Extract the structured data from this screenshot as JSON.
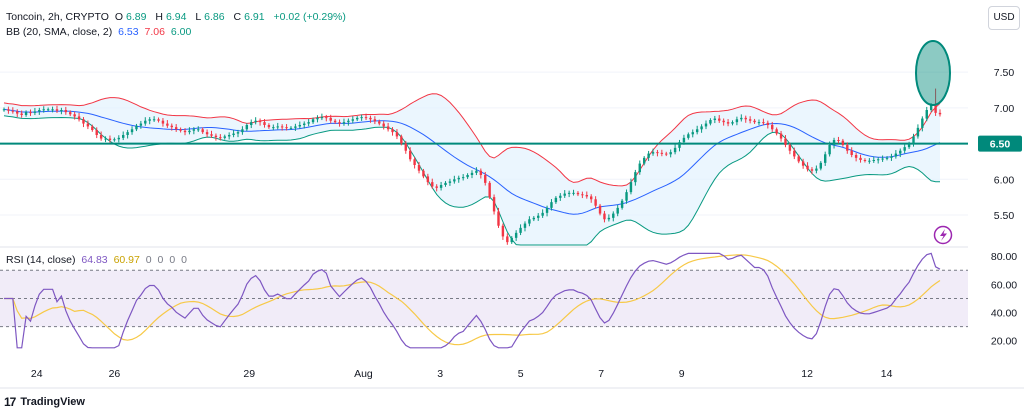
{
  "header": {
    "symbol": "Toncoin, 2h, CRYPTO",
    "o_label": "O",
    "o_val": "6.89",
    "h_label": "H",
    "h_val": "6.94",
    "l_label": "L",
    "l_val": "6.86",
    "c_label": "C",
    "c_val": "6.91",
    "change": "+0.02 (+0.29%)"
  },
  "bb_legend": {
    "label": "BB (20, SMA, close, 2)",
    "basis": "6.53",
    "upper": "7.06",
    "lower": "6.00"
  },
  "rsi_legend": {
    "label": "RSI (14, close)",
    "rsi": "64.83",
    "sma": "60.97",
    "extra": [
      "0",
      "0",
      "0",
      "0"
    ]
  },
  "currency_button": "USD",
  "brand": {
    "logo": "17",
    "name": "TradingView"
  },
  "colors": {
    "candle_up": "#089981",
    "candle_down": "#f23645",
    "bb_basis": "#2962ff",
    "bb_upper": "#f23645",
    "bb_lower": "#089981",
    "bb_fill": "#e3f2fd",
    "support": "#00897b",
    "rsi_line": "#7e57c2",
    "rsi_ma": "#f7c948",
    "rsi_band": "#ede7f6"
  },
  "chart_data": [
    {
      "type": "candlestick",
      "title": "Toncoin, 2h, CRYPTO",
      "x_labels": [
        "24",
        "26",
        "29",
        "Aug",
        "3",
        "5",
        "7",
        "9",
        "12",
        "14"
      ],
      "y_ticks": [
        5.5,
        6.0,
        6.5,
        7.0,
        7.5
      ],
      "ylim": [
        5.08,
        7.95
      ],
      "support_level": 6.5,
      "support_label": "6.50",
      "bb_last": {
        "basis": 6.53,
        "upper": 7.06,
        "lower": 6.0
      },
      "close": [
        6.98,
        6.96,
        6.95,
        6.92,
        6.9,
        6.94,
        6.93,
        6.95,
        6.97,
        6.98,
        6.98,
        6.98,
        6.96,
        6.97,
        6.94,
        6.91,
        6.88,
        6.84,
        6.78,
        6.74,
        6.69,
        6.62,
        6.57,
        6.57,
        6.55,
        6.56,
        6.58,
        6.62,
        6.66,
        6.7,
        6.75,
        6.78,
        6.82,
        6.84,
        6.84,
        6.82,
        6.78,
        6.75,
        6.73,
        6.7,
        6.68,
        6.66,
        6.68,
        6.7,
        6.7,
        6.66,
        6.63,
        6.61,
        6.59,
        6.58,
        6.6,
        6.62,
        6.64,
        6.66,
        6.7,
        6.76,
        6.8,
        6.82,
        6.8,
        6.76,
        6.73,
        6.73,
        6.74,
        6.73,
        6.72,
        6.72,
        6.74,
        6.76,
        6.78,
        6.8,
        6.84,
        6.86,
        6.87,
        6.86,
        6.82,
        6.8,
        6.78,
        6.8,
        6.82,
        6.84,
        6.86,
        6.87,
        6.86,
        6.84,
        6.81,
        6.78,
        6.74,
        6.7,
        6.66,
        6.6,
        6.5,
        6.4,
        6.28,
        6.2,
        6.12,
        6.04,
        5.96,
        5.9,
        5.88,
        5.92,
        5.95,
        5.97,
        6.0,
        6.02,
        6.03,
        6.06,
        6.09,
        6.12,
        6.06,
        5.95,
        5.75,
        5.55,
        5.35,
        5.2,
        5.12,
        5.18,
        5.25,
        5.32,
        5.38,
        5.44,
        5.46,
        5.49,
        5.53,
        5.6,
        5.68,
        5.74,
        5.77,
        5.8,
        5.81,
        5.81,
        5.79,
        5.78,
        5.76,
        5.72,
        5.63,
        5.52,
        5.44,
        5.46,
        5.52,
        5.6,
        5.7,
        5.82,
        5.96,
        6.1,
        6.22,
        6.3,
        6.36,
        6.38,
        6.37,
        6.36,
        6.35,
        6.38,
        6.44,
        6.52,
        6.58,
        6.63,
        6.66,
        6.7,
        6.74,
        6.78,
        6.83,
        6.85,
        6.82,
        6.8,
        6.78,
        6.8,
        6.84,
        6.86,
        6.84,
        6.82,
        6.8,
        6.8,
        6.79,
        6.76,
        6.7,
        6.64,
        6.57,
        6.48,
        6.4,
        6.32,
        6.25,
        6.19,
        6.14,
        6.12,
        6.15,
        6.23,
        6.35,
        6.48,
        6.55,
        6.54,
        6.48,
        6.4,
        6.34,
        6.3,
        6.27,
        6.26,
        6.26,
        6.27,
        6.28,
        6.29,
        6.3,
        6.32,
        6.36,
        6.4,
        6.45,
        6.5,
        6.6,
        6.72,
        6.85,
        6.97,
        7.04,
        6.93,
        6.91
      ],
      "ylabel_rsi": "RSI (14, close)",
      "rsi_ticks": [
        20.0,
        40.0,
        60.0,
        80.0
      ],
      "rsi_ylim": [
        12,
        83
      ],
      "rsi_bands": [
        30,
        50,
        70
      ]
    }
  ]
}
